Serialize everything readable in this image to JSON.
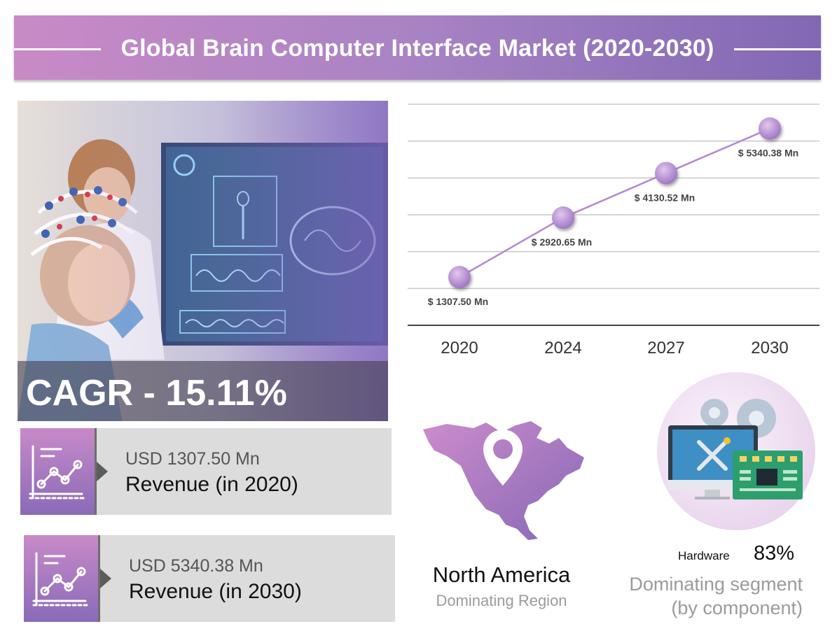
{
  "header": {
    "title": "Global Brain Computer Interface Market (2020-2030)"
  },
  "hero": {
    "cagr_text": "CAGR - 15.11%"
  },
  "cards": [
    {
      "amount": "USD 1307.50 Mn",
      "label": "Revenue (in 2020)",
      "icon": "line-chart-icon"
    },
    {
      "amount": "USD 5340.38 Mn",
      "label": "Revenue (in 2030)",
      "icon": "line-chart-icon"
    }
  ],
  "region": {
    "name": "North America",
    "subtitle": "Dominating Region",
    "icon": "location-pin-icon"
  },
  "segment": {
    "label": "Hardware",
    "percent": "83%",
    "share": 83,
    "description_line1": "Dominating segment",
    "description_line2": "(by component)",
    "icon": "hardware-monitor-icon"
  },
  "colors": {
    "accent": "#a27cc2",
    "marker": "#b88fcf",
    "line": "#b28ad0"
  },
  "chart_data": {
    "type": "line",
    "title": "",
    "xlabel": "",
    "ylabel": "",
    "categories": [
      "2020",
      "2024",
      "2027",
      "2030"
    ],
    "series": [
      {
        "values": [
          1307.5,
          2920.65,
          4130.52,
          5340.38
        ],
        "labels": [
          "$ 1307.50 Mn",
          "$ 2920.65 Mn",
          "$ 4130.52 Mn",
          "$ 5340.38 Mn"
        ]
      }
    ],
    "ylim": [
      0,
      6000
    ],
    "grid": true,
    "legend": "none"
  }
}
